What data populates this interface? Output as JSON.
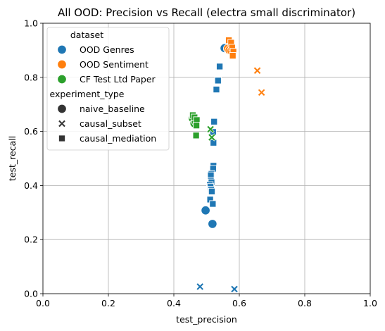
{
  "chart_data": {
    "type": "scatter",
    "title": "All OOD: Precision vs Recall (electra small discriminator)",
    "xlabel": "test_precision",
    "ylabel": "test_recall",
    "xlim": [
      0.0,
      1.0
    ],
    "ylim": [
      0.0,
      1.0
    ],
    "xticks": [
      "0.0",
      "0.2",
      "0.4",
      "0.6",
      "0.8",
      "1.0"
    ],
    "yticks": [
      "0.0",
      "0.2",
      "0.4",
      "0.6",
      "0.8",
      "1.0"
    ],
    "grid": true,
    "legend_placement": "upper-left",
    "legend": {
      "hue_title": "dataset",
      "style_title": "experiment_type",
      "datasets": [
        {
          "name": "OOD Genres",
          "color": "#1f77b4"
        },
        {
          "name": "OOD Sentiment",
          "color": "#ff7f0e"
        },
        {
          "name": "CF Test Ltd Paper",
          "color": "#2ca02c"
        }
      ],
      "experiment_types": [
        {
          "name": "naive_baseline",
          "marker": "circle"
        },
        {
          "name": "causal_subset",
          "marker": "x"
        },
        {
          "name": "causal_mediation",
          "marker": "square"
        }
      ]
    },
    "series": [
      {
        "dataset": "OOD Genres",
        "experiment_type": "naive_baseline",
        "points": [
          [
            0.497,
            0.308
          ],
          [
            0.518,
            0.258
          ],
          [
            0.555,
            0.908
          ]
        ]
      },
      {
        "dataset": "OOD Genres",
        "experiment_type": "causal_subset",
        "points": [
          [
            0.48,
            0.026
          ],
          [
            0.585,
            0.017
          ]
        ]
      },
      {
        "dataset": "OOD Genres",
        "experiment_type": "causal_mediation",
        "points": [
          [
            0.54,
            0.84
          ],
          [
            0.535,
            0.788
          ],
          [
            0.53,
            0.755
          ],
          [
            0.523,
            0.636
          ],
          [
            0.52,
            0.598
          ],
          [
            0.521,
            0.558
          ],
          [
            0.521,
            0.473
          ],
          [
            0.52,
            0.462
          ],
          [
            0.515,
            0.443
          ],
          [
            0.513,
            0.438
          ],
          [
            0.513,
            0.418
          ],
          [
            0.515,
            0.412
          ],
          [
            0.51,
            0.402
          ],
          [
            0.512,
            0.395
          ],
          [
            0.514,
            0.385
          ],
          [
            0.516,
            0.378
          ],
          [
            0.511,
            0.348
          ],
          [
            0.519,
            0.332
          ]
        ]
      },
      {
        "dataset": "OOD Sentiment",
        "experiment_type": "naive_baseline",
        "points": [
          [
            0.565,
            0.906
          ],
          [
            0.57,
            0.9
          ],
          [
            0.576,
            0.898
          ]
        ]
      },
      {
        "dataset": "OOD Sentiment",
        "experiment_type": "causal_subset",
        "points": [
          [
            0.655,
            0.825
          ],
          [
            0.668,
            0.744
          ]
        ]
      },
      {
        "dataset": "OOD Sentiment",
        "experiment_type": "causal_mediation",
        "points": [
          [
            0.568,
            0.937
          ],
          [
            0.575,
            0.928
          ],
          [
            0.578,
            0.91
          ],
          [
            0.582,
            0.895
          ],
          [
            0.58,
            0.88
          ]
        ]
      },
      {
        "dataset": "CF Test Ltd Paper",
        "experiment_type": "naive_baseline",
        "points": [
          [
            0.458,
            0.648
          ],
          [
            0.463,
            0.63
          ],
          [
            0.468,
            0.636
          ]
        ]
      },
      {
        "dataset": "CF Test Ltd Paper",
        "experiment_type": "causal_subset",
        "points": [
          [
            0.512,
            0.608
          ],
          [
            0.516,
            0.578
          ]
        ]
      },
      {
        "dataset": "CF Test Ltd Paper",
        "experiment_type": "causal_mediation",
        "points": [
          [
            0.458,
            0.66
          ],
          [
            0.463,
            0.652
          ],
          [
            0.47,
            0.642
          ],
          [
            0.469,
            0.622
          ],
          [
            0.468,
            0.585
          ]
        ]
      }
    ]
  }
}
